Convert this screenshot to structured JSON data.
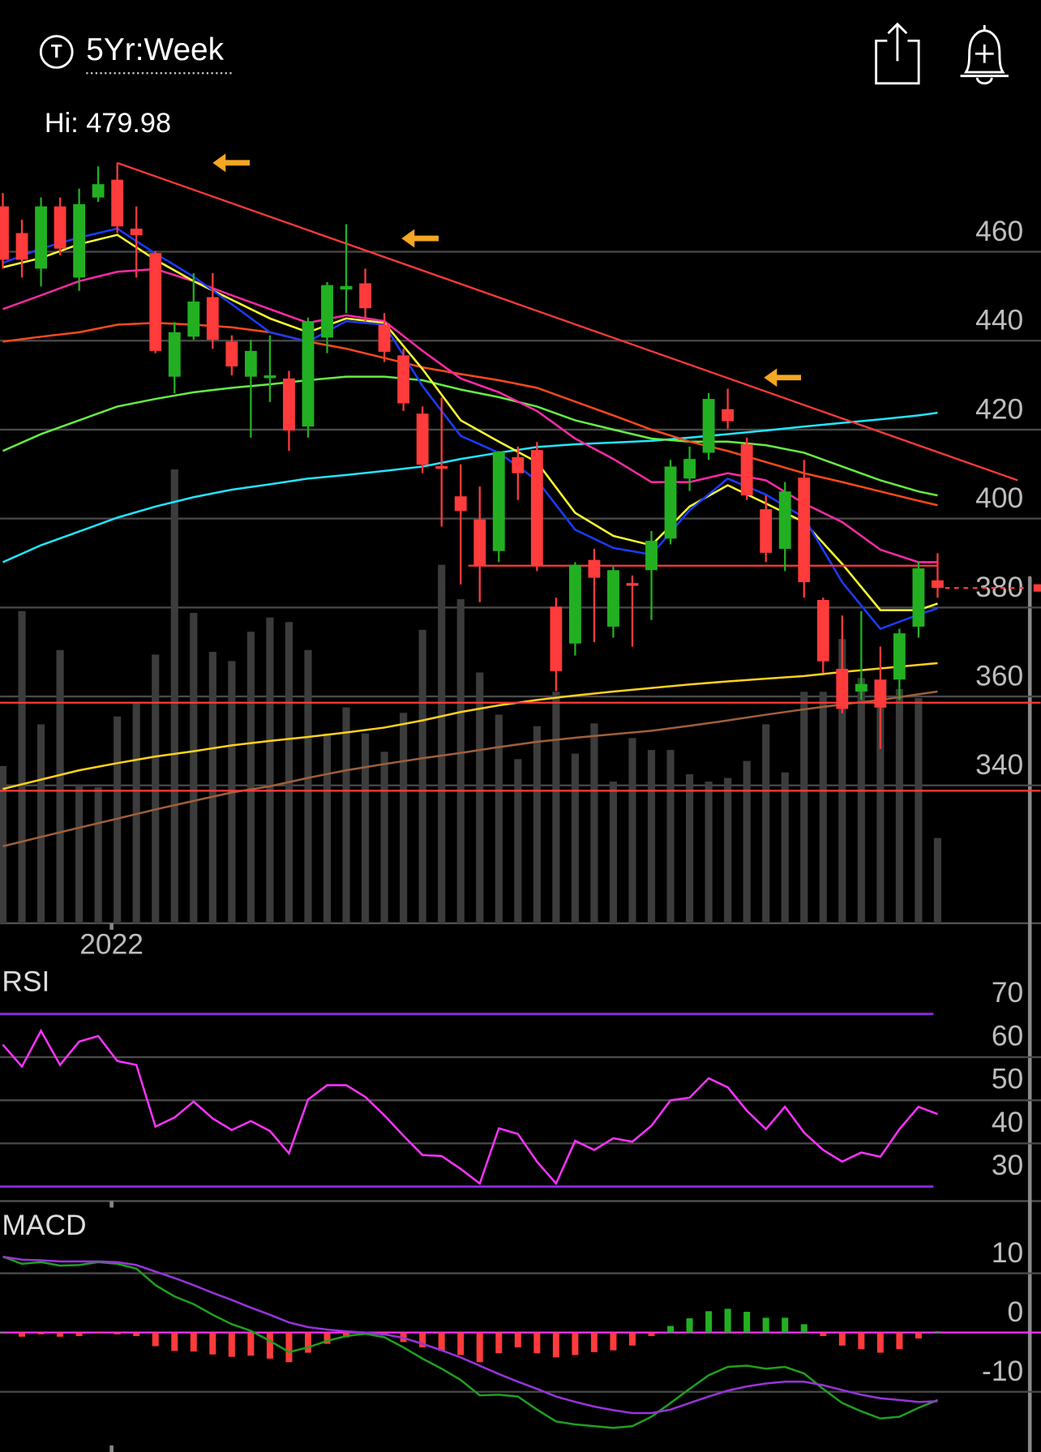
{
  "header": {
    "icon_label": "T",
    "timeframe": "5Yr:Week",
    "hi_label": "Hi: 479.98"
  },
  "chart_data": [
    {
      "type": "candlestick",
      "up_color": "#22b022",
      "down_color": "#ff3b3b",
      "open": [
        470.2,
        464.2,
        456.2,
        470.2,
        454.2,
        472.2,
        476.2,
        465.2,
        459.7,
        431.9,
        440.9,
        449.8,
        439.8,
        431.9,
        431.9,
        431.5,
        420.7,
        440.7,
        451.5,
        452.9,
        443.6,
        436.7,
        423.6,
        411.8,
        405,
        399.8,
        392.7,
        413.8,
        415.4,
        380.2,
        371.9,
        390.7,
        375.7,
        385.5,
        388.4,
        395.5,
        409,
        414.8,
        424.6,
        416.7,
        402.1,
        393.2,
        409.2,
        381.7,
        366.2,
        361.1,
        363.8,
        363.8,
        375.7,
        386.1
      ],
      "high": [
        473.2,
        467.2,
        472.2,
        472.2,
        474.2,
        479.2,
        479.98,
        470.2,
        460.2,
        444.2,
        455.2,
        455.2,
        441.2,
        440.2,
        441.2,
        433.2,
        445.2,
        453.2,
        466.2,
        456.2,
        446.2,
        438.2,
        425.2,
        427.2,
        412.2,
        407.2,
        415.2,
        416.2,
        417.2,
        382.2,
        390.2,
        393.2,
        389.2,
        387.2,
        397.2,
        413.2,
        416.2,
        428.2,
        429.2,
        418.2,
        405.2,
        408.2,
        413.2,
        382.2,
        378.2,
        379.2,
        371.2,
        375.2,
        390.2,
        392.2
      ],
      "low": [
        456.2,
        454.2,
        452.2,
        459.2,
        451.2,
        471.2,
        464.2,
        454.2,
        437.2,
        428.2,
        440.2,
        438.2,
        432.2,
        418.2,
        426.2,
        415.2,
        418.2,
        437.2,
        446.2,
        444.2,
        435.2,
        424.2,
        410.2,
        398.2,
        385.2,
        381.2,
        390.2,
        404.2,
        388.2,
        361.2,
        369.2,
        372.2,
        373.2,
        371.2,
        377.2,
        394.2,
        406.2,
        413.2,
        420.2,
        404.2,
        390.2,
        388.2,
        382.2,
        365.2,
        356.2,
        359.2,
        348.2,
        359.2,
        373.2,
        382.2
      ],
      "close": [
        458.2,
        458.2,
        470.2,
        460.7,
        470.7,
        475.2,
        465.7,
        463.7,
        437.7,
        441.9,
        448.8,
        440.2,
        434.2,
        437.7,
        432.2,
        419.8,
        444.4,
        452.5,
        452.3,
        447.3,
        437.5,
        425.9,
        412.1,
        411.5,
        401.7,
        389.4,
        415,
        410.2,
        389.4,
        365.7,
        389.6,
        386.7,
        388.4,
        385.2,
        395,
        411.7,
        413.4,
        426.9,
        421.9,
        405.2,
        392.3,
        406.1,
        385.7,
        367.9,
        357.2,
        362.8,
        357.5,
        374.2,
        388.8,
        384.4
      ],
      "volume": {
        "color": "#3c3c3c",
        "ylim": [
          0,
          100
        ],
        "values": [
          34.3,
          68.1,
          43.4,
          59.6,
          30.3,
          29.7,
          45.1,
          47.9,
          58.6,
          99,
          67.7,
          59.2,
          57.2,
          63.6,
          66.7,
          65.7,
          59.6,
          41.4,
          47.1,
          41.4,
          37.4,
          45.9,
          64,
          78.2,
          70.7,
          54.7,
          45.5,
          35.8,
          43,
          50.5,
          37,
          43.6,
          30.9,
          40.4,
          37.8,
          37.8,
          32.5,
          30.9,
          31.7,
          35.4,
          43.4,
          32.9,
          50.5,
          50.5,
          62,
          53.5,
          50.5,
          51.1,
          49.1,
          18.6
        ]
      },
      "ma_index": [
        0,
        2,
        4,
        6,
        8,
        10,
        12,
        14,
        16,
        18,
        20,
        22,
        24,
        26,
        28,
        30,
        32,
        34,
        36,
        38,
        40,
        42,
        44,
        46,
        48,
        49
      ],
      "moving_averages": [
        {
          "color": "#a0603a",
          "values": [
            326.3,
            328.4,
            330.5,
            332.5,
            334.6,
            336.5,
            338.4,
            339.8,
            341.7,
            343.4,
            344.8,
            346.1,
            347.3,
            348.6,
            349.8,
            350.7,
            351.5,
            352.3,
            353.4,
            354.6,
            355.9,
            357.1,
            358.2,
            359.2,
            360.5,
            361.1
          ]
        },
        {
          "color": "#ffd21a",
          "values": [
            339.2,
            341.3,
            343.4,
            345,
            346.5,
            347.7,
            349,
            350,
            350.9,
            351.9,
            353,
            354.6,
            356.5,
            358,
            359.2,
            360.2,
            361.1,
            361.9,
            362.7,
            363.4,
            364,
            364.6,
            365.5,
            366.3,
            367.1,
            367.5
          ]
        },
        {
          "color": "#22e6ff",
          "values": [
            390.2,
            394,
            397.1,
            400.2,
            402.7,
            404.8,
            406.5,
            407.7,
            409,
            409.8,
            410.7,
            411.7,
            413.4,
            414.8,
            416.1,
            416.7,
            417.1,
            417.5,
            418.2,
            419,
            419.8,
            420.7,
            421.5,
            422.3,
            423.2,
            423.8
          ]
        },
        {
          "color": "#66ee44",
          "values": [
            415.2,
            419,
            422.1,
            425.2,
            426.9,
            428.4,
            429.4,
            430.2,
            431.1,
            431.9,
            431.9,
            431.1,
            429,
            427.3,
            425.2,
            422.1,
            420,
            418,
            417.3,
            417.3,
            416.5,
            414.8,
            411.7,
            408.6,
            406.1,
            405.2
          ]
        },
        {
          "color": "#ff4a1a",
          "values": [
            439.8,
            440.9,
            441.9,
            443.6,
            444,
            443.6,
            443,
            441.9,
            439.8,
            438.2,
            436.1,
            434,
            432.5,
            431.1,
            429.4,
            426.3,
            423.2,
            420,
            417.3,
            415.2,
            412.7,
            410.2,
            408.2,
            406.1,
            404,
            403
          ]
        },
        {
          "color": "#ff2aa8",
          "values": [
            447.1,
            450.2,
            453.4,
            455.5,
            456.1,
            453.4,
            450.2,
            447.1,
            444,
            445.7,
            444.4,
            437.7,
            431.5,
            428.4,
            424.2,
            418,
            413.4,
            408.2,
            408.2,
            410.2,
            408.6,
            403.4,
            399.2,
            393,
            390.2,
            390.2
          ]
        },
        {
          "color": "#ffff33",
          "values": [
            456.5,
            458.6,
            461.7,
            463.8,
            458.2,
            453.4,
            449.2,
            445,
            441.9,
            445,
            444,
            433.6,
            422.1,
            417.3,
            412.7,
            401.3,
            396.1,
            394,
            402.7,
            407.5,
            403.4,
            399.2,
            389.8,
            379.4,
            379.4,
            380.9
          ]
        },
        {
          "color": "#1a3cff",
          "values": [
            457.5,
            460.7,
            463.2,
            465.2,
            459.6,
            454.4,
            448.2,
            441.9,
            439.8,
            444.4,
            443.6,
            429.8,
            418.6,
            414.8,
            408.6,
            397.5,
            393.4,
            391.9,
            401.9,
            409,
            405.4,
            400.2,
            385.7,
            375.2,
            378.4,
            379.8
          ]
        }
      ],
      "trendlines": [
        {
          "color": "#ff3b3b",
          "x": [
            6,
            53.2
          ],
          "y": [
            479.98,
            408.6
          ]
        },
        {
          "color": "#ff3b3b",
          "x": [
            24.4,
            49
          ],
          "y": [
            389.4,
            389.4
          ]
        },
        {
          "color": "#ff3b3b",
          "x": [
            -0.2,
            54.4
          ],
          "y": [
            358.6,
            358.6
          ]
        },
        {
          "color": "#ff3b3b",
          "x": [
            -0.2,
            54.4
          ],
          "y": [
            338.8,
            338.8
          ]
        }
      ],
      "arrows": {
        "color": "#f5a623",
        "x": [
          11,
          20.9,
          39.9
        ],
        "y": [
          480,
          463,
          431.7
        ]
      },
      "ylim": [
        309,
        486
      ],
      "yticks": [
        340,
        360,
        380,
        400,
        420,
        440,
        460
      ],
      "xticks": [
        {
          "value": 5.7,
          "label": "2022"
        }
      ],
      "grid": true
    },
    {
      "type": "line",
      "title": "RSI",
      "color": "#ff33ff",
      "levels": [
        70,
        30
      ],
      "level_color": "#8a2be2",
      "values": [
        62.9,
        57.8,
        66.1,
        58.2,
        63.6,
        64.9,
        59.1,
        58.2,
        43.9,
        46,
        49.7,
        45.8,
        43.1,
        45.2,
        42.9,
        37.7,
        50.2,
        53.5,
        53.5,
        50.8,
        46.5,
        41.8,
        37.3,
        37.1,
        34.1,
        30.7,
        43.5,
        42.2,
        35.8,
        30.7,
        40.6,
        38.5,
        41.2,
        40.4,
        44.1,
        50,
        50.6,
        55.1,
        53,
        47.6,
        43.3,
        48.5,
        42.5,
        38.5,
        35.8,
        37.9,
        36.9,
        43.3,
        48.5,
        46.8
      ],
      "ylim": [
        26.65,
        80.73
      ],
      "yticks": [
        30,
        40,
        50,
        60,
        70
      ],
      "grid": true
    },
    {
      "type": "macd",
      "title": "MACD",
      "zero_color": "#ff33ff",
      "series": [
        {
          "color": "#1fa01f",
          "values": [
            12.8,
            11.6,
            11.9,
            11.3,
            11.4,
            11.9,
            11.6,
            10.8,
            8,
            6.1,
            4.8,
            3,
            1.4,
            0.3,
            -1.4,
            -3.3,
            -2.5,
            -1.4,
            -0.6,
            -0.2,
            -0.8,
            -2.5,
            -4.4,
            -6.1,
            -8,
            -10.6,
            -10.5,
            -10.8,
            -13,
            -15,
            -15.5,
            -15.8,
            -16.1,
            -15.8,
            -14.2,
            -11.9,
            -9.5,
            -7.2,
            -5.8,
            -5.6,
            -6.1,
            -5.8,
            -6.9,
            -9.5,
            -11.9,
            -13.3,
            -14.5,
            -14.2,
            -12.7,
            -11.4
          ]
        },
        {
          "color": "#9933dd",
          "values": [
            12.8,
            12.3,
            12.2,
            12,
            12,
            12,
            11.9,
            11.4,
            10.3,
            9.2,
            8,
            6.7,
            5.5,
            4.2,
            3,
            1.7,
            0.9,
            0.5,
            0.2,
            0,
            -0.3,
            -0.9,
            -1.9,
            -3,
            -4.2,
            -5.6,
            -7,
            -8.3,
            -9.5,
            -10.8,
            -11.7,
            -12.5,
            -13.1,
            -13.6,
            -13.6,
            -13,
            -11.9,
            -10.8,
            -9.8,
            -9.1,
            -8.6,
            -8.3,
            -8.3,
            -8.9,
            -9.7,
            -10.5,
            -11.1,
            -11.4,
            -11.7,
            -11.6
          ]
        }
      ],
      "histogram": {
        "up_color": "#22b022",
        "down_color": "#ff3b3b",
        "values": [
          0,
          -0.7,
          -0.3,
          -0.7,
          -0.6,
          -0.1,
          -0.3,
          -0.6,
          -2.3,
          -3.1,
          -3.2,
          -3.7,
          -4.1,
          -3.9,
          -4.4,
          -5,
          -3.4,
          -1.9,
          -0.8,
          -0.2,
          -0.5,
          -1.6,
          -2.5,
          -3.1,
          -3.8,
          -5,
          -3.5,
          -2.5,
          -3.5,
          -4.2,
          -3.8,
          -3.3,
          -3,
          -2.2,
          -0.6,
          1.1,
          2.4,
          3.6,
          4,
          3.5,
          2.5,
          2.5,
          1.4,
          -0.6,
          -2.2,
          -2.8,
          -3.4,
          -2.8,
          -1,
          0.2
        ]
      },
      "ylim": [
        -20.16,
        20.16
      ],
      "yticks": [
        -10,
        0,
        10
      ],
      "grid": true
    }
  ]
}
